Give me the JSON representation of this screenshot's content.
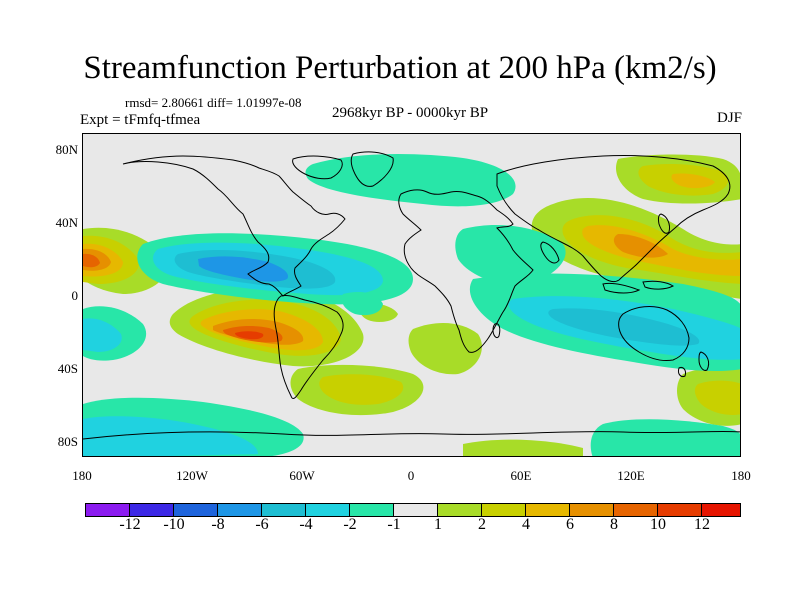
{
  "figure": {
    "title": "Streamfunction Perturbation at 200 hPa (km2/s)",
    "stats": "rmsd= 2.80661 diff= 1.01997e-08",
    "experiment": "Expt = tFmfq-tfmea",
    "period": "2968kyr BP - 0000kyr BP",
    "season": "DJF"
  },
  "axes": {
    "y_labels": [
      "80N",
      "40N",
      "0",
      "40S",
      "80S"
    ],
    "x_labels": [
      "180",
      "120W",
      "60W",
      "0",
      "60E",
      "120E",
      "180"
    ]
  },
  "colorbar": {
    "colors": [
      "#8c1cf0",
      "#3c28e6",
      "#1e64dc",
      "#1e96e6",
      "#1ebed2",
      "#20d2e0",
      "#28e6a8",
      "#e8e8e8",
      "#a8dc28",
      "#c8d000",
      "#e6b800",
      "#e69000",
      "#e66400",
      "#e63c00",
      "#e61400"
    ],
    "labels": [
      "-12",
      "-10",
      "-8",
      "-6",
      "-4",
      "-2",
      "-1",
      "1",
      "2",
      "4",
      "6",
      "8",
      "10",
      "12"
    ]
  }
}
